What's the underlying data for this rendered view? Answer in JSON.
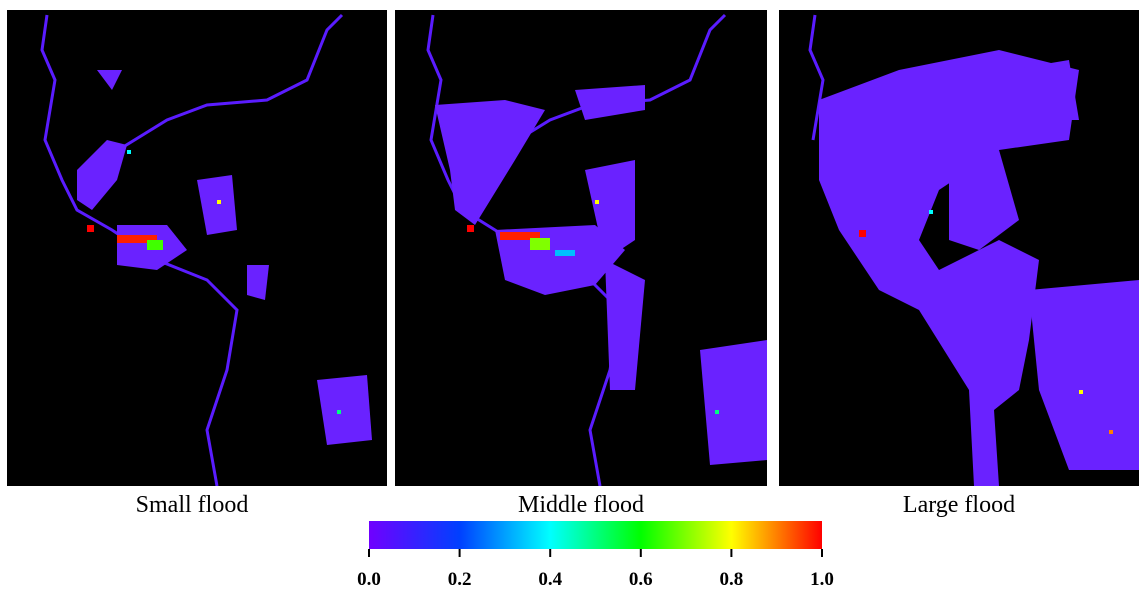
{
  "panels": [
    {
      "label": "Small flood"
    },
    {
      "label": "Middle flood"
    },
    {
      "label": "Large flood"
    }
  ],
  "colorbar": {
    "range": [
      0,
      1
    ],
    "ticks": [
      {
        "value": 0,
        "label": "0.0"
      },
      {
        "value": 0.2,
        "label": "0.2"
      },
      {
        "value": 0.4,
        "label": "0.4"
      },
      {
        "value": 0.6,
        "label": "0.6"
      },
      {
        "value": 0.8,
        "label": "0.8"
      },
      {
        "value": 1,
        "label": "1.0"
      }
    ],
    "colors": [
      "#7000ff",
      "#0040ff",
      "#00ffff",
      "#00ff00",
      "#ffff00",
      "#ff0000"
    ]
  }
}
